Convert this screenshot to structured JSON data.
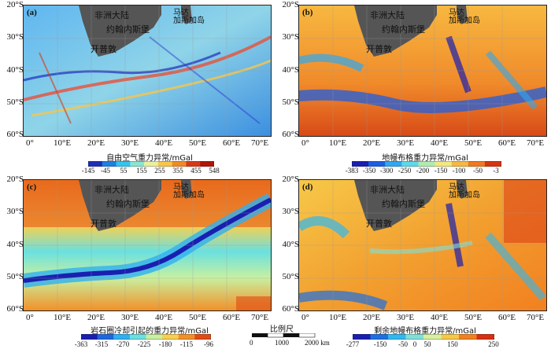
{
  "panels": [
    {
      "tag": "(a)",
      "africa": "非洲大陆",
      "madagascar_line1": "马达",
      "madagascar_line2": "加斯加岛",
      "johannesburg": "约翰内斯堡",
      "capetown": "开普敦",
      "lat_ticks": [
        "20°S",
        "30°S",
        "40°S",
        "50°S",
        "60°S"
      ],
      "lon_ticks": [
        "0°",
        "10°E",
        "20°E",
        "30°E",
        "40°E",
        "50°E",
        "60°E",
        "70°E"
      ],
      "colorbar_title": "自由空气重力异常/mGal",
      "colorbar_ticks": [
        "-145",
        "-45",
        "55",
        "155",
        "255",
        "355",
        "455",
        "548"
      ],
      "colorbar_colors": [
        "#1f2db8",
        "#1e7fe0",
        "#2fc6f0",
        "#88e6d0",
        "#e8f0a0",
        "#f7c64a",
        "#f28a25",
        "#d83a16",
        "#b01408"
      ]
    },
    {
      "tag": "(b)",
      "africa": "非洲大陆",
      "madagascar_line1": "马达",
      "madagascar_line2": "加斯加岛",
      "johannesburg": "约翰内斯堡",
      "capetown": "开普敦",
      "lat_ticks": [
        "20°S",
        "30°S",
        "40°S",
        "50°S",
        "60°S"
      ],
      "lon_ticks": [
        "0°",
        "10°E",
        "20°E",
        "30°E",
        "40°E",
        "50°E",
        "60°E",
        "70°E"
      ],
      "colorbar_title": "地幔布格重力异常/mGal",
      "colorbar_ticks": [
        "-383",
        "-350",
        "-300",
        "-250",
        "-200",
        "-150",
        "-100",
        "-50",
        "-3"
      ],
      "colorbar_colors": [
        "#1a1fb0",
        "#1e5fe0",
        "#2fa8f0",
        "#5fd8e8",
        "#b0ecb0",
        "#f2e880",
        "#f7b840",
        "#f07a20",
        "#d83410"
      ]
    },
    {
      "tag": "(c)",
      "africa": "非洲大陆",
      "madagascar_line1": "马达",
      "madagascar_line2": "加斯加岛",
      "johannesburg": "约翰内斯堡",
      "capetown": "开普敦",
      "lat_ticks": [
        "20°S",
        "30°S",
        "40°S",
        "50°S",
        "60°S"
      ],
      "lon_ticks": [
        "0°",
        "10°E",
        "20°E",
        "30°E",
        "40°E",
        "50°E",
        "60°E",
        "70°E"
      ],
      "colorbar_title": "岩石圈冷却引起的重力异常/mGal",
      "colorbar_ticks": [
        "-363",
        "-315",
        "-270",
        "-225",
        "-180",
        "-115",
        "-96"
      ],
      "colorbar_colors": [
        "#1a1fb0",
        "#1e66e0",
        "#2fb0f0",
        "#6ae0e0",
        "#c8f0a0",
        "#f7d050",
        "#f29028",
        "#e04a14"
      ]
    },
    {
      "tag": "(d)",
      "africa": "非洲大陆",
      "madagascar_line1": "马达",
      "madagascar_line2": "加斯加岛",
      "johannesburg": "约翰内斯堡",
      "capetown": "开普敦",
      "lat_ticks": [
        "20°S",
        "30°S",
        "40°S",
        "50°S",
        "60°S"
      ],
      "lon_ticks": [
        "0°",
        "10°E",
        "20°E",
        "30°E",
        "40°E",
        "50°E",
        "60°E",
        "70°E"
      ],
      "colorbar_title": "剩余地幔布格重力异常/mGal",
      "colorbar_ticks": [
        "-277",
        "-150",
        "-50",
        "0",
        "50",
        "150",
        "250"
      ],
      "colorbar_colors": [
        "#1a1fb0",
        "#1e6fe0",
        "#30b8f0",
        "#80e0d8",
        "#d8f0a0",
        "#f7c848",
        "#f28020",
        "#d83012"
      ]
    }
  ],
  "scale_bar": {
    "title": "比例尺",
    "ticks": [
      "0",
      "1000",
      "2000 km"
    ]
  }
}
